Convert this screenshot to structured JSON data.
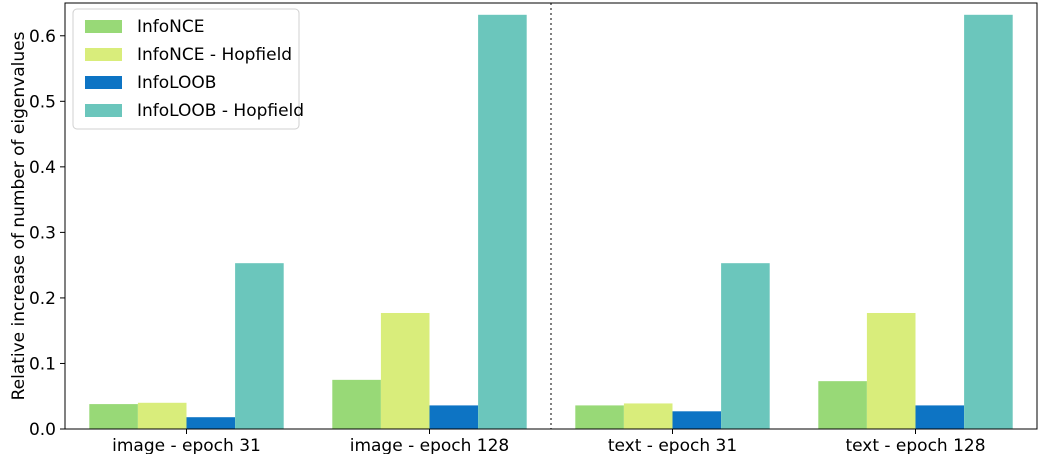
{
  "chart_data": {
    "type": "bar",
    "categories": [
      "image - epoch 31",
      "image - epoch 128",
      "text - epoch 31",
      "text - epoch 128"
    ],
    "series": [
      {
        "name": "InfoNCE",
        "color": "#98d977",
        "values": [
          0.038,
          0.075,
          0.036,
          0.073
        ]
      },
      {
        "name": "InfoNCE - Hopfield",
        "color": "#d9ed7b",
        "values": [
          0.04,
          0.177,
          0.039,
          0.177
        ]
      },
      {
        "name": "InfoLOOB",
        "color": "#0d74c4",
        "values": [
          0.018,
          0.036,
          0.027,
          0.036
        ]
      },
      {
        "name": "InfoLOOB - Hopfield",
        "color": "#6bc6bc",
        "values": [
          0.253,
          0.632,
          0.253,
          0.632
        ]
      }
    ],
    "ylabel": "Relative increase of number of eigenvalues",
    "ylim": [
      0,
      0.65
    ],
    "yticks": [
      0.0,
      0.1,
      0.2,
      0.3,
      0.4,
      0.5,
      0.6
    ],
    "ytick_labels": [
      "0.0",
      "0.1",
      "0.2",
      "0.3",
      "0.4",
      "0.5",
      "0.6"
    ],
    "legend_position": "upper-left",
    "separator": "dotted vertical line between image and text groups",
    "grid": false
  }
}
